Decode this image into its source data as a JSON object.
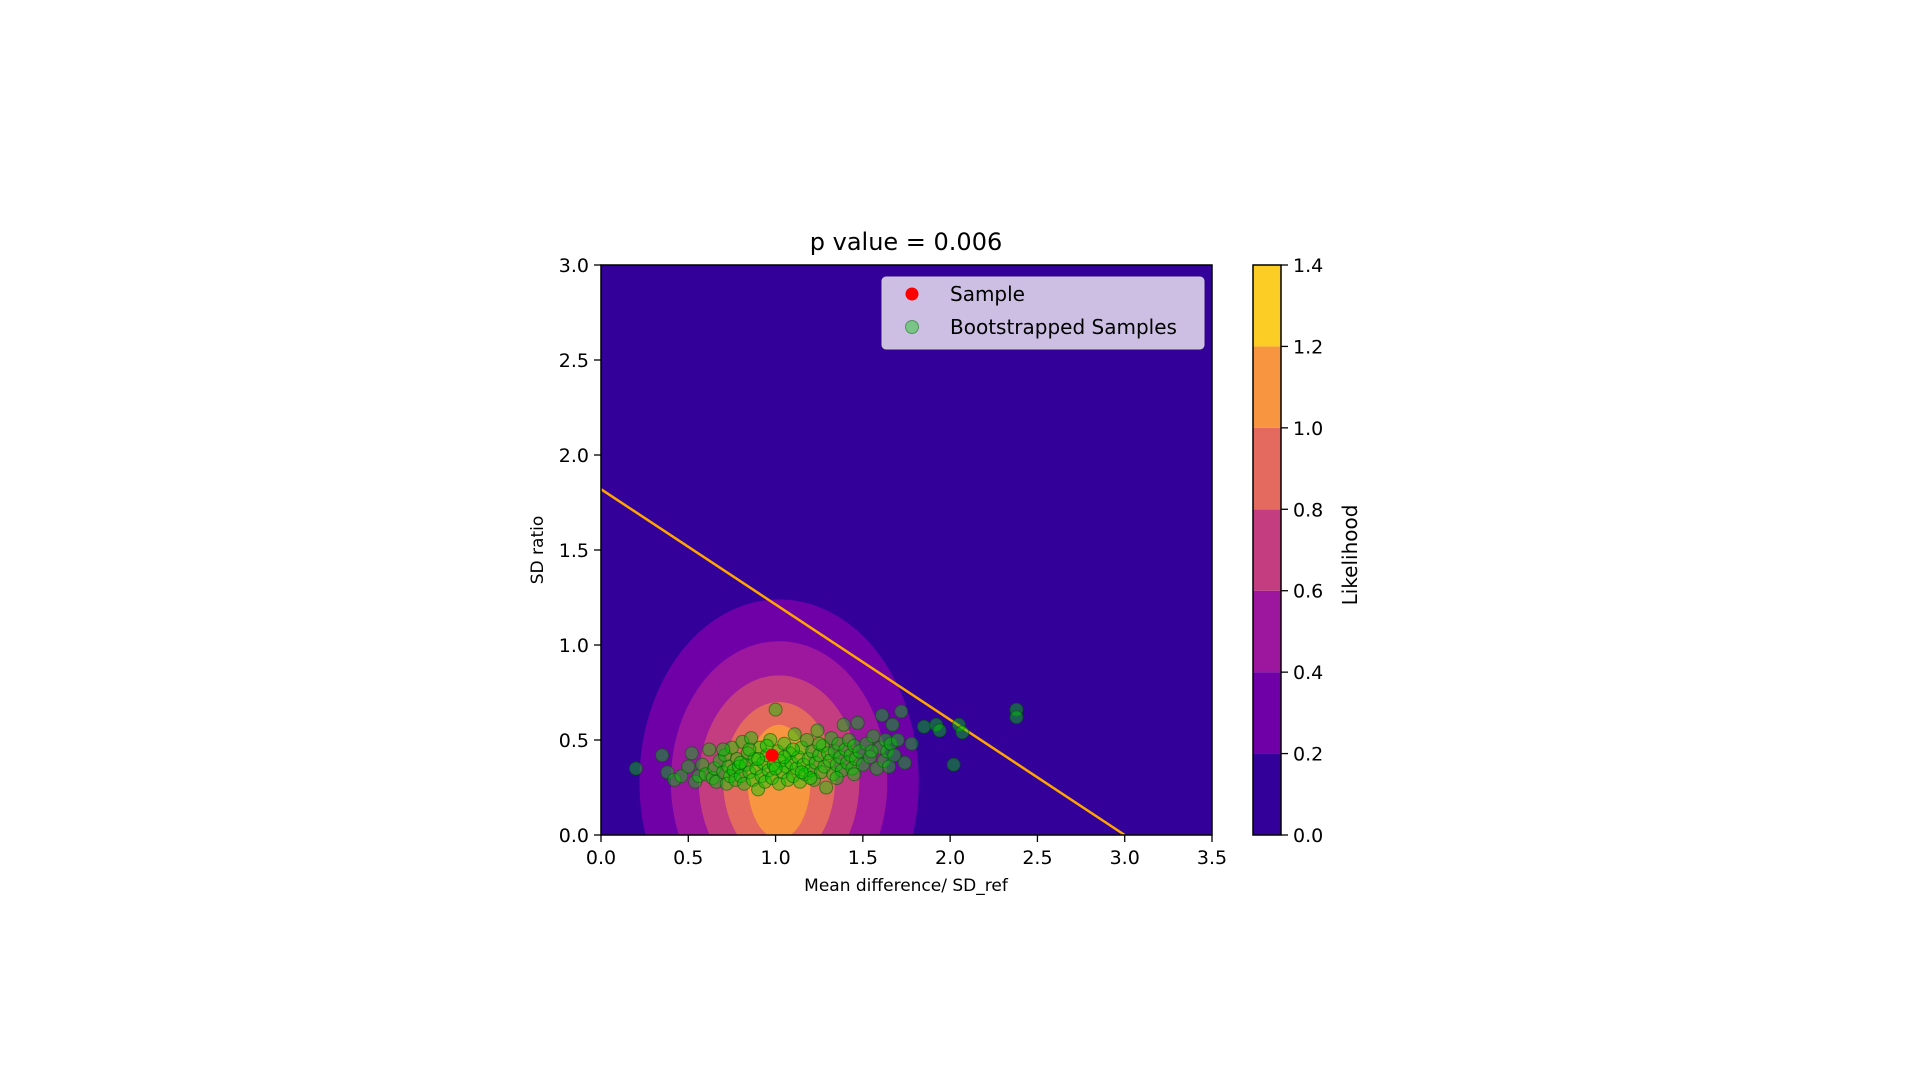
{
  "chart_data": {
    "type": "scatter",
    "title": "p value = 0.006",
    "xlabel": "Mean difference/ SD_ref",
    "ylabel": "SD ratio",
    "xlim": [
      0.0,
      3.5
    ],
    "ylim": [
      0.0,
      3.0
    ],
    "x_ticks": [
      "0.0",
      "0.5",
      "1.0",
      "1.5",
      "2.0",
      "2.5",
      "3.0",
      "3.5"
    ],
    "y_ticks": [
      "0.0",
      "0.5",
      "1.0",
      "1.5",
      "2.0",
      "2.5",
      "3.0"
    ],
    "grid": false,
    "legend_position": "top-right",
    "background_color": "#330099",
    "colorbar": {
      "label": "Likelihood",
      "ticks": [
        "0.0",
        "0.2",
        "0.4",
        "0.6",
        "0.8",
        "1.0",
        "1.2",
        "1.4"
      ],
      "levels": [
        0.0,
        0.2,
        0.4,
        0.6,
        0.8,
        1.0,
        1.2,
        1.4
      ],
      "colors": [
        "#330099",
        "#6f00a8",
        "#9c179e",
        "#c33d80",
        "#e4695e",
        "#f89540",
        "#fcce25"
      ]
    },
    "density": {
      "center": [
        1.02,
        0.28
      ],
      "radii_x": [
        0.8,
        0.62,
        0.46,
        0.32,
        0.18
      ],
      "radii_y": [
        0.96,
        0.74,
        0.56,
        0.42,
        0.3
      ],
      "level_index": [
        1,
        2,
        3,
        4,
        5
      ]
    },
    "decision_line": {
      "x": [
        0.0,
        3.0
      ],
      "y": [
        1.82,
        0.0
      ],
      "color": "#ffa500"
    },
    "series": [
      {
        "name": "Sample",
        "color": "#ff0000",
        "points": [
          [
            0.98,
            0.42
          ]
        ]
      },
      {
        "name": "Bootstrapped Samples",
        "color": "#00cc00",
        "points": [
          [
            0.2,
            0.35
          ],
          [
            0.35,
            0.42
          ],
          [
            0.38,
            0.33
          ],
          [
            0.42,
            0.29
          ],
          [
            0.46,
            0.31
          ],
          [
            0.5,
            0.36
          ],
          [
            0.52,
            0.43
          ],
          [
            0.54,
            0.28
          ],
          [
            0.56,
            0.31
          ],
          [
            0.58,
            0.37
          ],
          [
            0.6,
            0.32
          ],
          [
            0.62,
            0.45
          ],
          [
            0.64,
            0.3
          ],
          [
            0.65,
            0.35
          ],
          [
            0.66,
            0.28
          ],
          [
            0.68,
            0.39
          ],
          [
            0.7,
            0.33
          ],
          [
            0.71,
            0.42
          ],
          [
            0.72,
            0.27
          ],
          [
            0.73,
            0.36
          ],
          [
            0.74,
            0.31
          ],
          [
            0.75,
            0.46
          ],
          [
            0.76,
            0.34
          ],
          [
            0.77,
            0.29
          ],
          [
            0.78,
            0.4
          ],
          [
            0.79,
            0.36
          ],
          [
            0.8,
            0.31
          ],
          [
            0.81,
            0.49
          ],
          [
            0.82,
            0.27
          ],
          [
            0.83,
            0.37
          ],
          [
            0.84,
            0.43
          ],
          [
            0.85,
            0.33
          ],
          [
            0.86,
            0.51
          ],
          [
            0.87,
            0.29
          ],
          [
            0.88,
            0.4
          ],
          [
            0.89,
            0.35
          ],
          [
            0.9,
            0.24
          ],
          [
            0.91,
            0.46
          ],
          [
            0.92,
            0.31
          ],
          [
            0.93,
            0.38
          ],
          [
            0.94,
            0.28
          ],
          [
            0.95,
            0.42
          ],
          [
            0.96,
            0.34
          ],
          [
            0.97,
            0.5
          ],
          [
            0.98,
            0.3
          ],
          [
            0.99,
            0.37
          ],
          [
            1.0,
            0.66
          ],
          [
            1.01,
            0.44
          ],
          [
            1.02,
            0.27
          ],
          [
            1.03,
            0.39
          ],
          [
            1.04,
            0.33
          ],
          [
            1.05,
            0.48
          ],
          [
            1.06,
            0.36
          ],
          [
            1.07,
            0.29
          ],
          [
            1.08,
            0.43
          ],
          [
            1.09,
            0.38
          ],
          [
            1.1,
            0.31
          ],
          [
            1.11,
            0.53
          ],
          [
            1.12,
            0.35
          ],
          [
            1.13,
            0.41
          ],
          [
            1.14,
            0.28
          ],
          [
            1.15,
            0.46
          ],
          [
            1.16,
            0.37
          ],
          [
            1.17,
            0.32
          ],
          [
            1.18,
            0.5
          ],
          [
            1.19,
            0.4
          ],
          [
            1.2,
            0.34
          ],
          [
            1.21,
            0.44
          ],
          [
            1.22,
            0.29
          ],
          [
            1.23,
            0.38
          ],
          [
            1.24,
            0.55
          ],
          [
            1.25,
            0.42
          ],
          [
            1.26,
            0.33
          ],
          [
            1.27,
            0.47
          ],
          [
            1.28,
            0.36
          ],
          [
            1.29,
            0.25
          ],
          [
            1.3,
            0.43
          ],
          [
            1.31,
            0.39
          ],
          [
            1.32,
            0.51
          ],
          [
            1.33,
            0.32
          ],
          [
            1.34,
            0.44
          ],
          [
            1.35,
            0.37
          ],
          [
            1.36,
            0.48
          ],
          [
            1.37,
            0.41
          ],
          [
            1.38,
            0.34
          ],
          [
            1.39,
            0.58
          ],
          [
            1.4,
            0.45
          ],
          [
            1.41,
            0.38
          ],
          [
            1.42,
            0.5
          ],
          [
            1.43,
            0.42
          ],
          [
            1.44,
            0.35
          ],
          [
            1.45,
            0.47
          ],
          [
            1.46,
            0.4
          ],
          [
            1.47,
            0.59
          ],
          [
            1.48,
            0.44
          ],
          [
            1.5,
            0.37
          ],
          [
            1.52,
            0.48
          ],
          [
            1.54,
            0.41
          ],
          [
            1.56,
            0.52
          ],
          [
            1.58,
            0.35
          ],
          [
            1.6,
            0.46
          ],
          [
            1.61,
            0.63
          ],
          [
            1.62,
            0.39
          ],
          [
            1.63,
            0.5
          ],
          [
            1.64,
            0.44
          ],
          [
            1.65,
            0.36
          ],
          [
            1.66,
            0.48
          ],
          [
            1.67,
            0.58
          ],
          [
            1.68,
            0.42
          ],
          [
            1.7,
            0.5
          ],
          [
            1.72,
            0.65
          ],
          [
            1.74,
            0.38
          ],
          [
            1.78,
            0.48
          ],
          [
            1.85,
            0.57
          ],
          [
            1.92,
            0.58
          ],
          [
            1.94,
            0.55
          ],
          [
            2.02,
            0.37
          ],
          [
            2.05,
            0.58
          ],
          [
            2.07,
            0.54
          ],
          [
            2.38,
            0.66
          ],
          [
            2.38,
            0.62
          ],
          [
            0.9,
            0.4
          ],
          [
            1.0,
            0.35
          ],
          [
            1.1,
            0.45
          ],
          [
            1.2,
            0.3
          ],
          [
            0.85,
            0.45
          ],
          [
            0.95,
            0.47
          ],
          [
            1.05,
            0.41
          ],
          [
            1.15,
            0.33
          ],
          [
            1.25,
            0.48
          ],
          [
            1.35,
            0.3
          ],
          [
            1.45,
            0.32
          ],
          [
            0.8,
            0.38
          ],
          [
            0.7,
            0.45
          ],
          [
            1.55,
            0.44
          ]
        ]
      }
    ]
  }
}
